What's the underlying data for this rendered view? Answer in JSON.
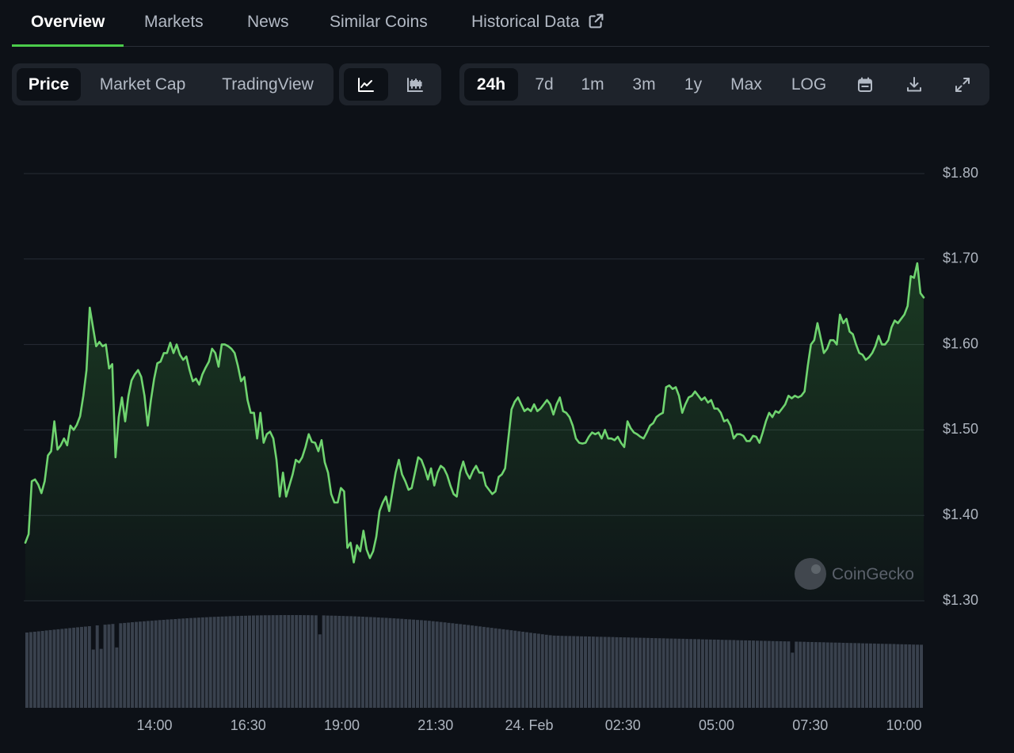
{
  "tabs": [
    {
      "label": "Overview",
      "active": true
    },
    {
      "label": "Markets",
      "active": false
    },
    {
      "label": "News",
      "active": false
    },
    {
      "label": "Similar Coins",
      "active": false
    },
    {
      "label": "Historical Data",
      "active": false
    }
  ],
  "view_toggle": {
    "price": "Price",
    "market_cap": "Market Cap",
    "tradingview": "TradingView",
    "selected": "Price"
  },
  "chart_style": {
    "line_icon": "line-chart-icon",
    "candle_icon": "candlestick-icon",
    "selected": "line"
  },
  "ranges": {
    "r24h": "24h",
    "r7d": "7d",
    "r1m": "1m",
    "r3m": "3m",
    "r1y": "1y",
    "max": "Max",
    "log": "LOG",
    "selected": "24h",
    "calendar_icon": "calendar-icon",
    "download_icon": "download-icon",
    "expand_icon": "expand-icon"
  },
  "watermark": "CoinGecko",
  "colors": {
    "accent": "#4bcc4b",
    "line": "#6fd46f",
    "volume": "#39414d",
    "background": "#0d1117",
    "panel": "#1e232b"
  },
  "chart_data": {
    "type": "area",
    "title": "",
    "xlabel": "",
    "ylabel": "",
    "x_ticks": [
      "14:00",
      "16:30",
      "19:00",
      "21:30",
      "24. Feb",
      "02:30",
      "05:00",
      "07:30",
      "10:00"
    ],
    "y_ticks": [
      "$1.80",
      "$1.70",
      "$1.60",
      "$1.50",
      "$1.40",
      "$1.30"
    ],
    "ylim": [
      1.3,
      1.8
    ],
    "grid": true,
    "series": [
      {
        "values": [
          1.368,
          1.378,
          1.44,
          1.442,
          1.436,
          1.426,
          1.44,
          1.47,
          1.475,
          1.51,
          1.477,
          1.482,
          1.49,
          1.482,
          1.505,
          1.5,
          1.506,
          1.516,
          1.54,
          1.57,
          1.643,
          1.62,
          1.598,
          1.603,
          1.598,
          1.6,
          1.572,
          1.577,
          1.468,
          1.515,
          1.538,
          1.51,
          1.54,
          1.558,
          1.565,
          1.57,
          1.562,
          1.54,
          1.505,
          1.535,
          1.56,
          1.578,
          1.58,
          1.59,
          1.59,
          1.602,
          1.59,
          1.6,
          1.588,
          1.582,
          1.586,
          1.57,
          1.557,
          1.56,
          1.553,
          1.565,
          1.573,
          1.58,
          1.595,
          1.59,
          1.574,
          1.6,
          1.6,
          1.598,
          1.595,
          1.59,
          1.575,
          1.557,
          1.562,
          1.535,
          1.52,
          1.52,
          1.49,
          1.52,
          1.485,
          1.495,
          1.498,
          1.49,
          1.465,
          1.422,
          1.45,
          1.422,
          1.435,
          1.448,
          1.465,
          1.462,
          1.468,
          1.48,
          1.495,
          1.486,
          1.485,
          1.475,
          1.488,
          1.462,
          1.45,
          1.425,
          1.415,
          1.415,
          1.432,
          1.428,
          1.362,
          1.368,
          1.345,
          1.365,
          1.358,
          1.382,
          1.36,
          1.35,
          1.358,
          1.375,
          1.405,
          1.415,
          1.422,
          1.405,
          1.428,
          1.45,
          1.465,
          1.448,
          1.44,
          1.43,
          1.432,
          1.45,
          1.468,
          1.465,
          1.455,
          1.442,
          1.455,
          1.435,
          1.45,
          1.458,
          1.455,
          1.447,
          1.435,
          1.425,
          1.422,
          1.45,
          1.463,
          1.45,
          1.443,
          1.452,
          1.458,
          1.45,
          1.45,
          1.435,
          1.43,
          1.425,
          1.428,
          1.445,
          1.448,
          1.455,
          1.49,
          1.524,
          1.533,
          1.538,
          1.53,
          1.522,
          1.525,
          1.522,
          1.53,
          1.522,
          1.525,
          1.53,
          1.535,
          1.53,
          1.518,
          1.53,
          1.538,
          1.522,
          1.52,
          1.515,
          1.505,
          1.49,
          1.485,
          1.484,
          1.485,
          1.492,
          1.497,
          1.495,
          1.497,
          1.49,
          1.5,
          1.49,
          1.49,
          1.488,
          1.492,
          1.485,
          1.48,
          1.51,
          1.502,
          1.497,
          1.495,
          1.492,
          1.49,
          1.497,
          1.505,
          1.508,
          1.515,
          1.518,
          1.52,
          1.55,
          1.552,
          1.548,
          1.55,
          1.54,
          1.52,
          1.53,
          1.538,
          1.54,
          1.545,
          1.54,
          1.535,
          1.538,
          1.532,
          1.535,
          1.525,
          1.525,
          1.52,
          1.51,
          1.512,
          1.505,
          1.49,
          1.495,
          1.495,
          1.493,
          1.487,
          1.487,
          1.493,
          1.492,
          1.485,
          1.497,
          1.51,
          1.52,
          1.515,
          1.522,
          1.52,
          1.525,
          1.53,
          1.54,
          1.537,
          1.54,
          1.538,
          1.54,
          1.545,
          1.575,
          1.6,
          1.605,
          1.625,
          1.608,
          1.59,
          1.595,
          1.605,
          1.605,
          1.6,
          1.635,
          1.625,
          1.63,
          1.615,
          1.612,
          1.6,
          1.59,
          1.588,
          1.582,
          1.585,
          1.59,
          1.598,
          1.61,
          1.6,
          1.6,
          1.605,
          1.62,
          1.628,
          1.625,
          1.63,
          1.635,
          1.645,
          1.68,
          1.678,
          1.695,
          1.66,
          1.655
        ]
      }
    ],
    "volume_bars": true
  }
}
